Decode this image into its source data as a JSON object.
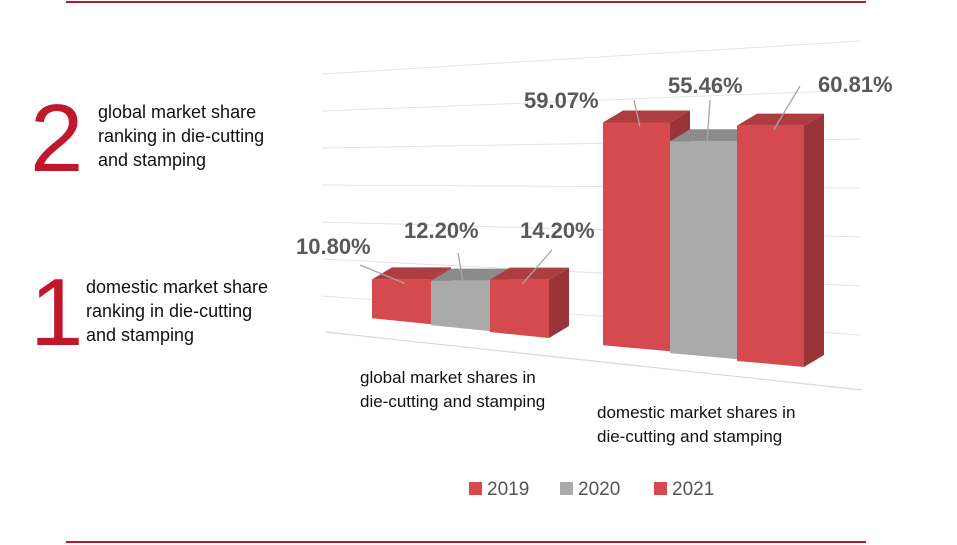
{
  "rankings": [
    {
      "number": "2",
      "text": "global market share\nranking in die-cutting\nand stamping"
    },
    {
      "number": "1",
      "text": "domestic market share\nranking in die-cutting\nand stamping"
    }
  ],
  "colors": {
    "accent": "#b01e2c",
    "bar2019": "#d44a4f",
    "bar2020": "#aaaaaa",
    "bar2021": "#d44a4f",
    "rank_number": "#c0182a"
  },
  "chart_data": {
    "type": "bar",
    "categories": [
      "global market shares in\ndie-cutting and stamping",
      "domestic market shares in\ndie-cutting and stamping"
    ],
    "series": [
      {
        "name": "2019",
        "values": [
          10.8,
          59.07
        ],
        "labels": [
          "10.80%",
          "59.07%"
        ]
      },
      {
        "name": "2020",
        "values": [
          12.2,
          55.46
        ],
        "labels": [
          "12.20%",
          "55.46%"
        ]
      },
      {
        "name": "2021",
        "values": [
          14.2,
          60.81
        ],
        "labels": [
          "14.20%",
          "60.81%"
        ]
      }
    ],
    "legend_position": "bottom",
    "grid": true,
    "three_d": true
  }
}
